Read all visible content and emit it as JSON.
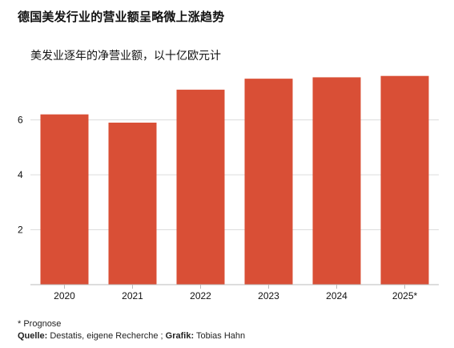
{
  "title": "德国美发行业的营业额呈略微上涨趋势",
  "subtitle": "美发业逐年的净营业额，以十亿欧元计",
  "footer": {
    "note": "* Prognose",
    "source_label": "Quelle:",
    "source_text": " Destatis, eigene Recherche ; ",
    "graphic_label": "Grafik:",
    "graphic_text": " Tobias Hahn"
  },
  "colors": {
    "bar": "#d94f36",
    "grid": "#dddddd",
    "axis": "#bbbbbb",
    "text": "#111111"
  },
  "chart_data": {
    "type": "bar",
    "title": "德国美发行业的营业额呈略微上涨趋势",
    "subtitle": "美发业逐年的净营业额，以十亿欧元计",
    "categories": [
      "2020",
      "2021",
      "2022",
      "2023",
      "2024",
      "2025*"
    ],
    "values": [
      6.2,
      5.9,
      7.1,
      7.5,
      7.55,
      7.6
    ],
    "xlabel": "",
    "ylabel": "",
    "ylim": [
      0,
      8
    ],
    "yticks": [
      2,
      4,
      6
    ],
    "grid": true,
    "legend": "none"
  }
}
